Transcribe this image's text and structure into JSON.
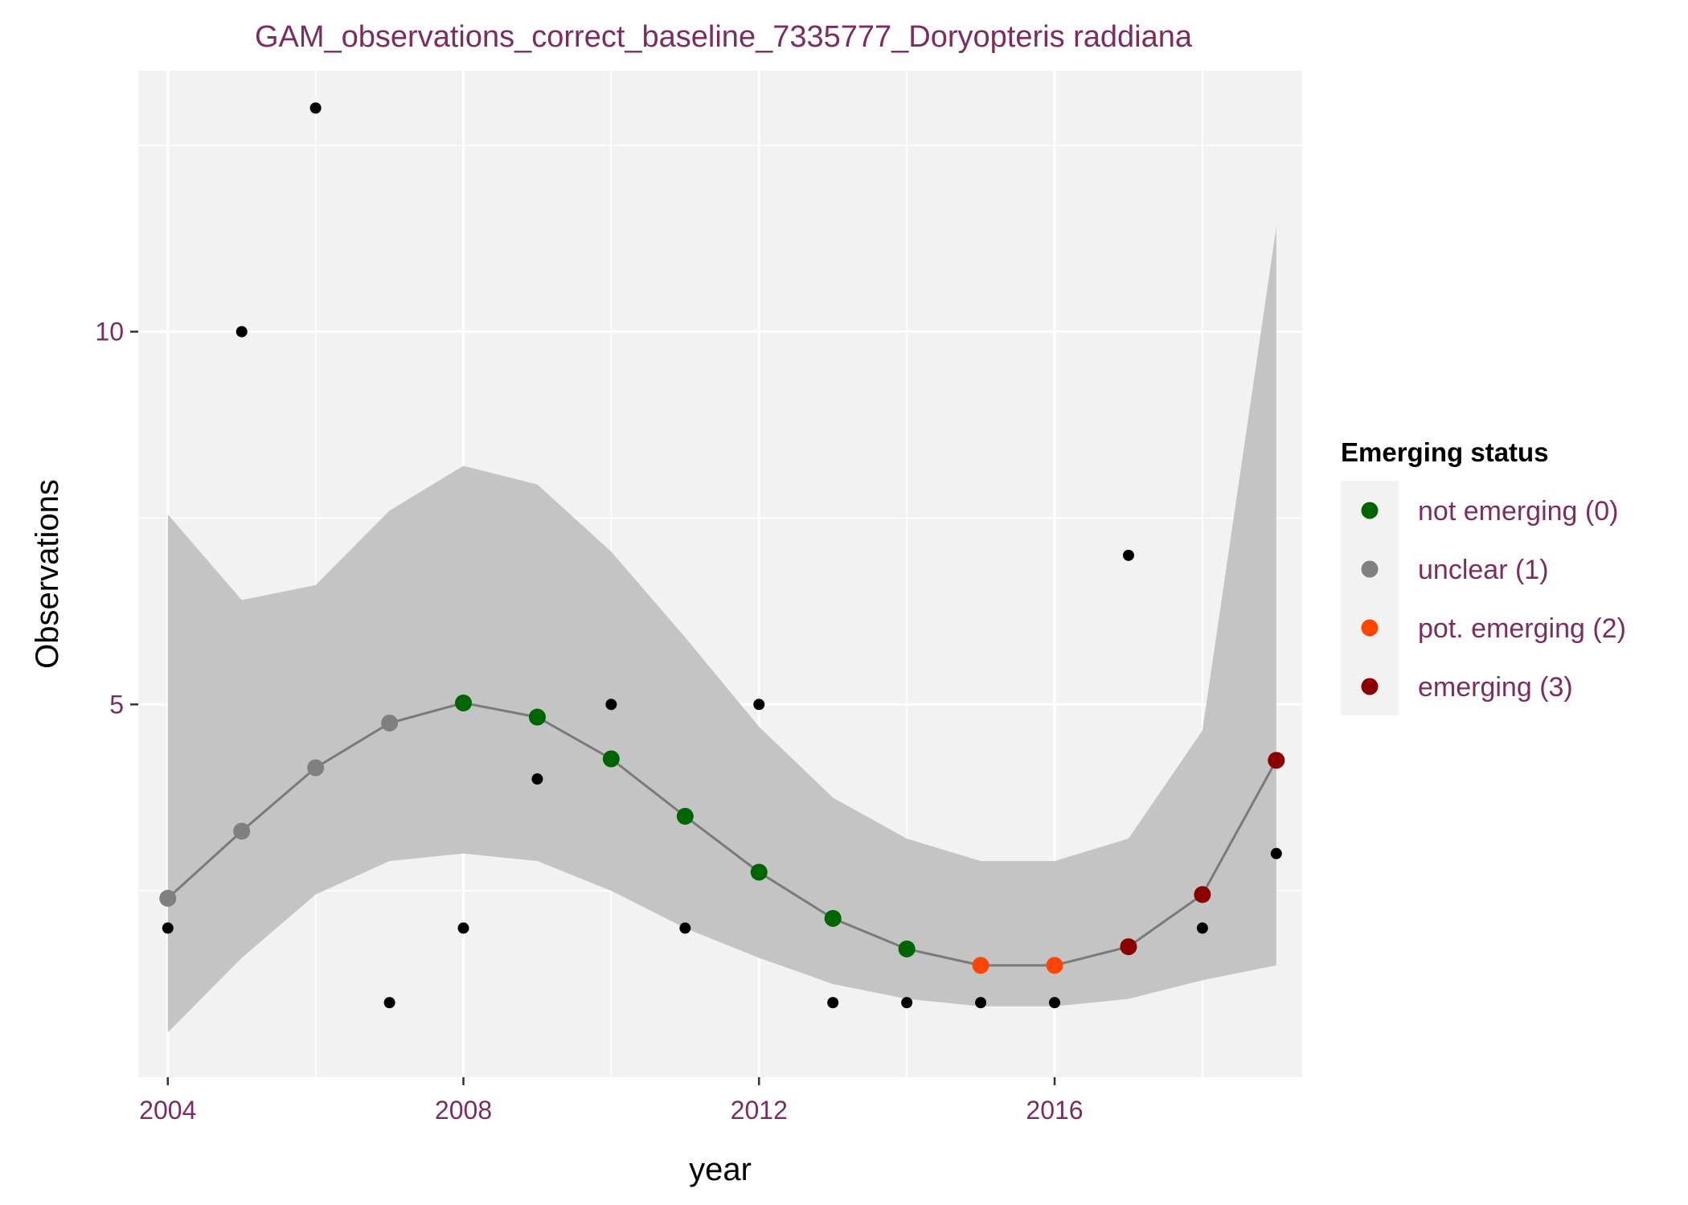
{
  "chart_data": {
    "type": "scatter",
    "title": "GAM_observations_correct_baseline_7335777_Doryopteris raddiana",
    "xlabel": "year",
    "ylabel": "Observations",
    "xlim": [
      2003.6,
      2019.35
    ],
    "ylim": [
      0.0,
      13.5
    ],
    "x_ticks": [
      2004,
      2008,
      2012,
      2016
    ],
    "y_ticks": [
      5,
      10
    ],
    "x_tick_labels": [
      "2004",
      "2008",
      "2012",
      "2016"
    ],
    "y_tick_labels": [
      "5",
      "10"
    ],
    "grid": true,
    "legend_position": "right",
    "legend": {
      "title": "Emerging status",
      "entries": [
        {
          "label": "not emerging (0)",
          "color": "#006400"
        },
        {
          "label": "unclear (1)",
          "color": "#808080"
        },
        {
          "label": "pot. emerging (2)",
          "color": "#ff4500"
        },
        {
          "label": "emerging (3)",
          "color": "#8b0000"
        }
      ]
    },
    "observations": {
      "x": [
        2004,
        2005,
        2006,
        2007,
        2008,
        2009,
        2010,
        2011,
        2012,
        2013,
        2014,
        2015,
        2016,
        2017,
        2018,
        2019
      ],
      "y": [
        2,
        10,
        13,
        1,
        2,
        4,
        5,
        2,
        5,
        1,
        1,
        1,
        1,
        7,
        2,
        3
      ]
    },
    "fit": {
      "x": [
        2004,
        2005,
        2006,
        2007,
        2008,
        2009,
        2010,
        2011,
        2012,
        2013,
        2014,
        2015,
        2016,
        2017,
        2018,
        2019
      ],
      "y": [
        2.4,
        3.3,
        4.15,
        4.75,
        5.02,
        4.83,
        4.27,
        3.5,
        2.75,
        2.13,
        1.72,
        1.5,
        1.5,
        1.75,
        2.45,
        4.25
      ],
      "lower": [
        0.6,
        1.6,
        2.45,
        2.9,
        3.0,
        2.9,
        2.5,
        2.0,
        1.6,
        1.25,
        1.05,
        0.95,
        0.95,
        1.05,
        1.3,
        1.5
      ],
      "upper": [
        7.55,
        6.4,
        6.6,
        7.6,
        8.2,
        7.95,
        7.05,
        5.9,
        4.7,
        3.75,
        3.2,
        2.9,
        2.9,
        3.2,
        4.65,
        11.4
      ],
      "status": [
        1,
        1,
        1,
        1,
        0,
        0,
        0,
        0,
        0,
        0,
        0,
        2,
        2,
        3,
        3,
        3
      ]
    },
    "colors": {
      "panel": "#f2f2f2",
      "grid": "#ffffff",
      "ribbon": "#c4c4c4",
      "fit_line": "#7a7a7a",
      "observation_point": "#000000"
    }
  }
}
